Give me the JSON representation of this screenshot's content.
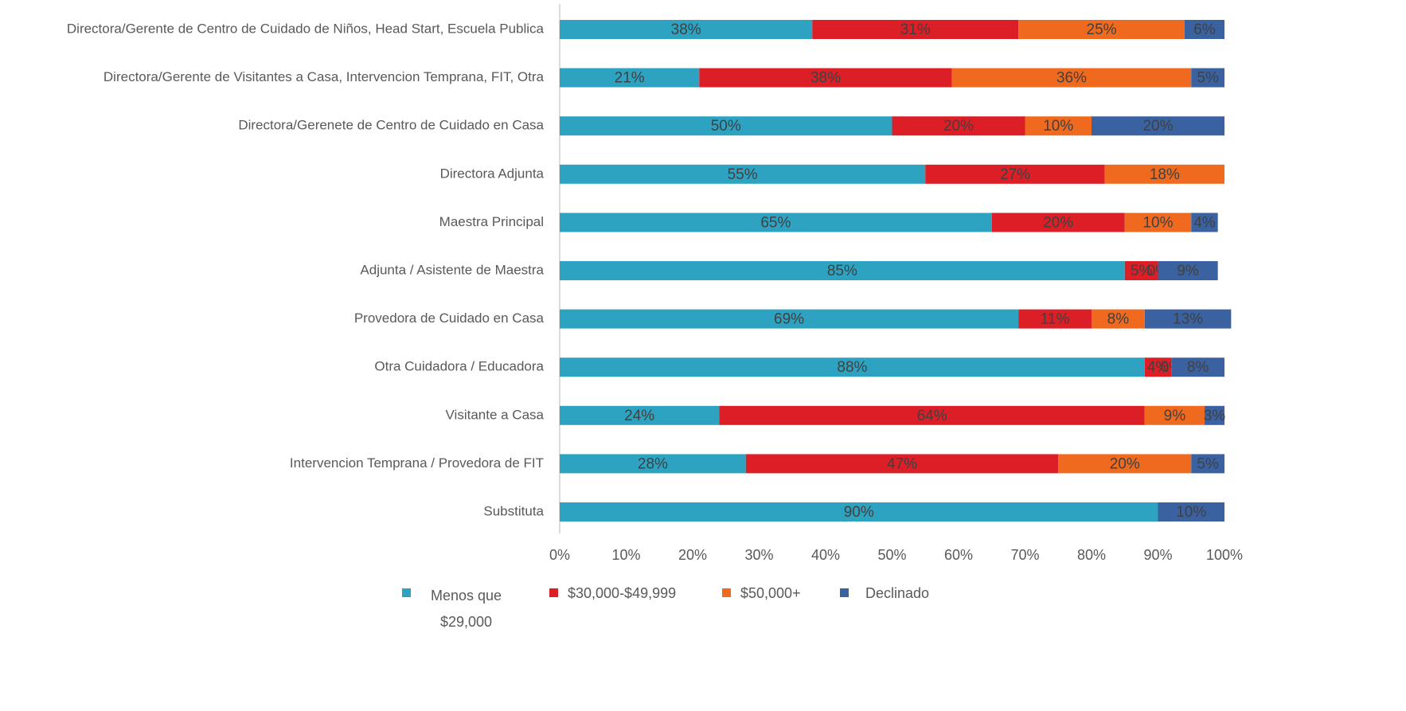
{
  "chart_data": {
    "type": "stacked_barh",
    "categories": [
      "Directora/Gerente de Centro de Cuidado de Niños, Head Start, Escuela Publica",
      "Directora/Gerente de Visitantes a Casa, Intervencion Temprana, FIT, Otra",
      "Directora/Gerenete de Centro de Cuidado en Casa",
      "Directora Adjunta",
      "Maestra Principal",
      "Adjunta / Asistente de Maestra",
      "Provedora de Cuidado en Casa",
      "Otra Cuidadora / Educadora",
      "Visitante a Casa",
      "Intervencion Temprana / Provedora de FIT",
      "Substituta"
    ],
    "series": [
      {
        "name": "Menos que $29,000",
        "color": "#2ea3c1",
        "values": [
          38,
          21,
          50,
          55,
          65,
          85,
          69,
          88,
          24,
          28,
          90
        ],
        "value_labels": [
          "38%",
          "21%",
          "50%",
          "55%",
          "65%",
          "85%",
          "69%",
          "88%",
          "24%",
          "28%",
          "90%"
        ]
      },
      {
        "name": "$30,000-$49,999",
        "color": "#dc1f26",
        "values": [
          31,
          38,
          20,
          27,
          20,
          5,
          11,
          4,
          64,
          47,
          null
        ],
        "value_labels": [
          "31%",
          "38%",
          "20%",
          "27%",
          "20%",
          "5%",
          "11%",
          "4%",
          "64%",
          "47%",
          null
        ]
      },
      {
        "name": "$50,000+",
        "color": "#ef6a1e",
        "values": [
          25,
          36,
          10,
          18,
          10,
          0,
          8,
          0,
          9,
          20,
          null
        ],
        "value_labels": [
          "25%",
          "36%",
          "10%",
          "18%",
          "10%",
          "0%",
          "8%",
          "0%",
          "9%",
          "20%",
          null
        ]
      },
      {
        "name": "Declinado",
        "color": "#3a62a0",
        "values": [
          6,
          5,
          20,
          null,
          4,
          9,
          13,
          8,
          3,
          5,
          10
        ],
        "value_labels": [
          "6%",
          "5%",
          "20%",
          null,
          "4%",
          "9%",
          "13%",
          "8%",
          "3%",
          "5%",
          "10%"
        ]
      }
    ],
    "xlim": [
      0,
      100
    ],
    "xticks": [
      {
        "value": 0,
        "label": "0%"
      },
      {
        "value": 10,
        "label": "10%"
      },
      {
        "value": 20,
        "label": "20%"
      },
      {
        "value": 30,
        "label": "30%"
      },
      {
        "value": 40,
        "label": "40%"
      },
      {
        "value": 50,
        "label": "50%"
      },
      {
        "value": 60,
        "label": "60%"
      },
      {
        "value": 70,
        "label": "70%"
      },
      {
        "value": 80,
        "label": "80%"
      },
      {
        "value": 90,
        "label": "90%"
      },
      {
        "value": 100,
        "label": "100%"
      }
    ],
    "legend": "bottom"
  }
}
